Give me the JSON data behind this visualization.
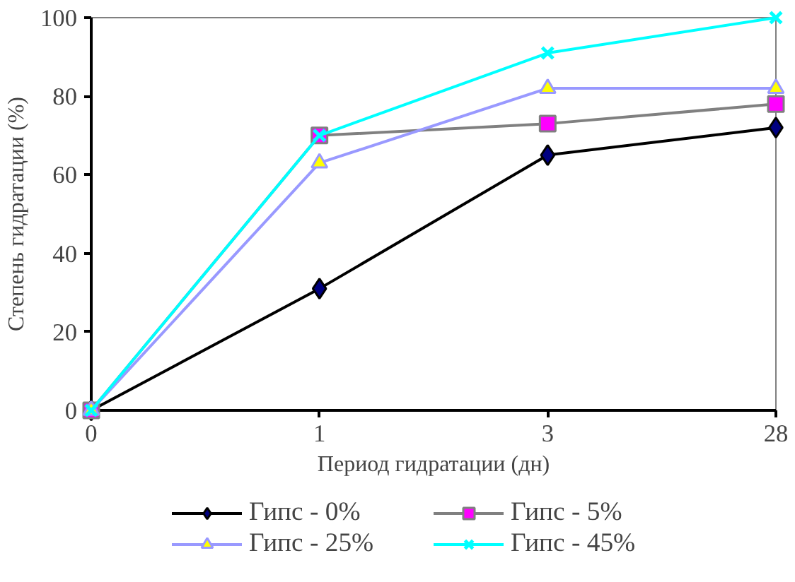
{
  "chart_data": {
    "type": "line",
    "xlabel": "Период гидратации (дн)",
    "ylabel": "Степень гидратации (%)",
    "categories": [
      "0",
      "1",
      "3",
      "28"
    ],
    "ylim": [
      0,
      100
    ],
    "yticks": [
      0,
      20,
      40,
      60,
      80,
      100
    ],
    "grid": false,
    "legend": "bottom",
    "series": [
      {
        "name": "Гипс - 0%",
        "color": "#000000",
        "marker": "diamond",
        "values": [
          0,
          31,
          65,
          72
        ]
      },
      {
        "name": "Гипс - 5%",
        "color": "#808080",
        "marker": "square",
        "values": [
          0,
          70,
          73,
          78
        ]
      },
      {
        "name": "Гипс - 25%",
        "color": "#9999ff",
        "marker": "triangle",
        "values": [
          0,
          63,
          82,
          82
        ]
      },
      {
        "name": "Гипс - 45%",
        "color": "#00ffff",
        "marker": "cross",
        "values": [
          0,
          70,
          91,
          100
        ]
      }
    ]
  }
}
